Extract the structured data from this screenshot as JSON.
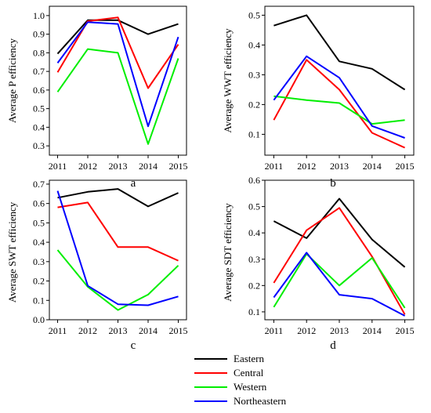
{
  "chart_data": [
    {
      "type": "line",
      "ylabel": "Average P efficiency",
      "panel_label": "a",
      "x": [
        "2011",
        "2012",
        "2013",
        "2014",
        "2015"
      ],
      "ylim": [
        0.25,
        1.05
      ],
      "yticks": [
        0.3,
        0.4,
        0.5,
        0.6,
        0.7,
        0.8,
        0.9,
        1.0
      ],
      "ytick_labels": [
        "0.3",
        "0.4",
        "0.5",
        "0.6",
        "0.7",
        "0.8",
        "0.9",
        "1.0"
      ],
      "series": [
        {
          "name": "Eastern",
          "values": [
            0.795,
            0.975,
            0.975,
            0.9,
            0.955
          ]
        },
        {
          "name": "Central",
          "values": [
            0.695,
            0.97,
            0.99,
            0.61,
            0.845
          ]
        },
        {
          "name": "Western",
          "values": [
            0.59,
            0.82,
            0.8,
            0.31,
            0.77
          ]
        },
        {
          "name": "Northeastern",
          "values": [
            0.745,
            0.965,
            0.955,
            0.405,
            0.885
          ]
        }
      ]
    },
    {
      "type": "line",
      "ylabel": "Average WWT efficiency",
      "panel_label": "b",
      "x": [
        "2011",
        "2012",
        "2013",
        "2014",
        "2015"
      ],
      "ylim": [
        0.03,
        0.53
      ],
      "yticks": [
        0.1,
        0.2,
        0.3,
        0.4,
        0.5
      ],
      "ytick_labels": [
        "0.1",
        "0.2",
        "0.3",
        "0.4",
        "0.5"
      ],
      "series": [
        {
          "name": "Eastern",
          "values": [
            0.465,
            0.5,
            0.345,
            0.32,
            0.25
          ]
        },
        {
          "name": "Central",
          "values": [
            0.148,
            0.35,
            0.25,
            0.105,
            0.055
          ]
        },
        {
          "name": "Western",
          "values": [
            0.228,
            0.215,
            0.205,
            0.135,
            0.148
          ]
        },
        {
          "name": "Northeastern",
          "values": [
            0.215,
            0.362,
            0.29,
            0.128,
            0.088
          ]
        }
      ]
    },
    {
      "type": "line",
      "ylabel": "Average SWT efficiency",
      "panel_label": "c",
      "x": [
        "2011",
        "2012",
        "2013",
        "2014",
        "2015"
      ],
      "ylim": [
        0.0,
        0.72
      ],
      "yticks": [
        0.0,
        0.1,
        0.2,
        0.3,
        0.4,
        0.5,
        0.6,
        0.7
      ],
      "ytick_labels": [
        "0.0",
        "0.1",
        "0.2",
        "0.3",
        "0.4",
        "0.5",
        "0.6",
        "0.7"
      ],
      "series": [
        {
          "name": "Eastern",
          "values": [
            0.63,
            0.66,
            0.675,
            0.585,
            0.655
          ]
        },
        {
          "name": "Central",
          "values": [
            0.58,
            0.605,
            0.375,
            0.375,
            0.305
          ]
        },
        {
          "name": "Western",
          "values": [
            0.36,
            0.17,
            0.05,
            0.13,
            0.28
          ]
        },
        {
          "name": "Northeastern",
          "values": [
            0.665,
            0.175,
            0.08,
            0.075,
            0.12
          ]
        }
      ]
    },
    {
      "type": "line",
      "ylabel": "Average SDT efficiency",
      "panel_label": "d",
      "x": [
        "2011",
        "2012",
        "2013",
        "2014",
        "2015"
      ],
      "ylim": [
        0.07,
        0.6
      ],
      "yticks": [
        0.1,
        0.2,
        0.3,
        0.4,
        0.5,
        0.6
      ],
      "ytick_labels": [
        "0.1",
        "0.2",
        "0.3",
        "0.4",
        "0.5",
        "0.6"
      ],
      "series": [
        {
          "name": "Eastern",
          "values": [
            0.445,
            0.38,
            0.53,
            0.375,
            0.27
          ]
        },
        {
          "name": "Central",
          "values": [
            0.21,
            0.41,
            0.495,
            0.31,
            0.09
          ]
        },
        {
          "name": "Western",
          "values": [
            0.118,
            0.32,
            0.2,
            0.305,
            0.115
          ]
        },
        {
          "name": "Northeastern",
          "values": [
            0.155,
            0.325,
            0.165,
            0.15,
            0.085
          ]
        }
      ]
    }
  ],
  "legend": {
    "placement": "bottom-center",
    "items": [
      {
        "name": "Eastern",
        "color": "#000000"
      },
      {
        "name": "Central",
        "color": "#ff0000"
      },
      {
        "name": "Western",
        "color": "#00ee00"
      },
      {
        "name": "Northeastern",
        "color": "#0000ff"
      }
    ]
  },
  "colors": {
    "Eastern": "#000000",
    "Central": "#ff0000",
    "Western": "#00ee00",
    "Northeastern": "#0000ff"
  }
}
